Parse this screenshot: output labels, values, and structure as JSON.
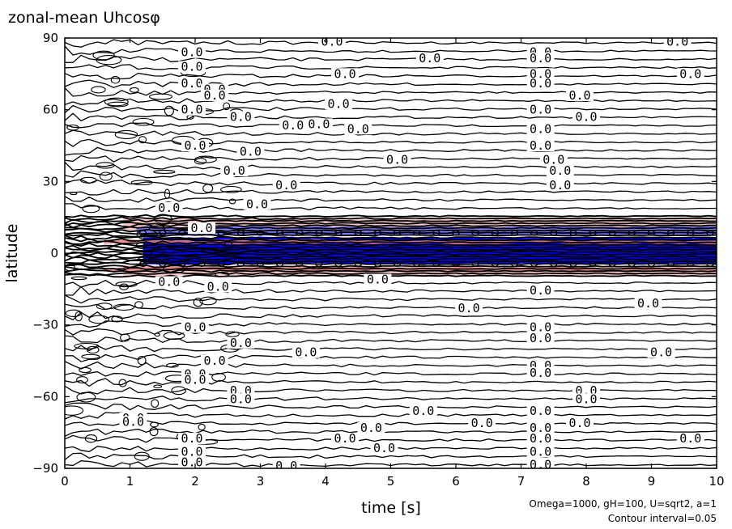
{
  "chart_data": {
    "type": "contour",
    "title": "zonal-mean Uhcosφ",
    "xlabel": "time [s]",
    "ylabel": "latitude",
    "xlim": [
      0,
      10
    ],
    "ylim": [
      -90,
      90
    ],
    "xticks": [
      "0",
      "1",
      "2",
      "3",
      "4",
      "5",
      "6",
      "7",
      "8",
      "9",
      "10"
    ],
    "yticks": [
      "90",
      "60",
      "30",
      "0",
      "−30",
      "−60",
      "−90"
    ],
    "yticks_values": [
      90,
      60,
      30,
      0,
      -30,
      -60,
      -90
    ],
    "annotations": [
      "Omega=1000, gH=100, U=sqrt2, a=1",
      "Contour interval=0.05"
    ],
    "contour_label": "0.0",
    "contour_interval": 0.05,
    "colors": {
      "negative_fill": "#0000ff",
      "weak_negative_fill": "#8080ff",
      "positive_fill": "#e88080",
      "weak_positive_fill": "#f4c0c0",
      "contour_line": "#000000"
    },
    "contour_labels": [
      {
        "t": 4.1,
        "lat": 88.5
      },
      {
        "t": 9.4,
        "lat": 88.5
      },
      {
        "t": 7.3,
        "lat": 84
      },
      {
        "t": 1.95,
        "lat": 84
      },
      {
        "t": 5.6,
        "lat": 81.5
      },
      {
        "t": 7.3,
        "lat": 81.5
      },
      {
        "t": 1.95,
        "lat": 78
      },
      {
        "t": 4.3,
        "lat": 75
      },
      {
        "t": 7.3,
        "lat": 75
      },
      {
        "t": 9.6,
        "lat": 75
      },
      {
        "t": 1.95,
        "lat": 71
      },
      {
        "t": 2.3,
        "lat": 68.5
      },
      {
        "t": 7.3,
        "lat": 71
      },
      {
        "t": 2.3,
        "lat": 66
      },
      {
        "t": 7.9,
        "lat": 66
      },
      {
        "t": 4.2,
        "lat": 62.5
      },
      {
        "t": 1.95,
        "lat": 60
      },
      {
        "t": 7.3,
        "lat": 60
      },
      {
        "t": 2.7,
        "lat": 57
      },
      {
        "t": 8.0,
        "lat": 57
      },
      {
        "t": 3.5,
        "lat": 53.5
      },
      {
        "t": 3.9,
        "lat": 54
      },
      {
        "t": 4.5,
        "lat": 52
      },
      {
        "t": 7.3,
        "lat": 52
      },
      {
        "t": 2.0,
        "lat": 45
      },
      {
        "t": 7.3,
        "lat": 45
      },
      {
        "t": 2.85,
        "lat": 42.5
      },
      {
        "t": 5.1,
        "lat": 39
      },
      {
        "t": 7.5,
        "lat": 39
      },
      {
        "t": 2.6,
        "lat": 34.5
      },
      {
        "t": 7.6,
        "lat": 34.5
      },
      {
        "t": 3.4,
        "lat": 28.5
      },
      {
        "t": 7.6,
        "lat": 28.5
      },
      {
        "t": 2.95,
        "lat": 20.5
      },
      {
        "t": 1.6,
        "lat": 19
      },
      {
        "t": 2.1,
        "lat": 10.5
      },
      {
        "t": 1.6,
        "lat": -12
      },
      {
        "t": 2.35,
        "lat": -14
      },
      {
        "t": 4.8,
        "lat": -11
      },
      {
        "t": 7.3,
        "lat": -15.5
      },
      {
        "t": 6.2,
        "lat": -23
      },
      {
        "t": 8.95,
        "lat": -21
      },
      {
        "t": 2.0,
        "lat": -31
      },
      {
        "t": 2.7,
        "lat": -37.5
      },
      {
        "t": 7.3,
        "lat": -31
      },
      {
        "t": 7.3,
        "lat": -35.5
      },
      {
        "t": 3.7,
        "lat": -41.5
      },
      {
        "t": 9.15,
        "lat": -41.5
      },
      {
        "t": 2.3,
        "lat": -45
      },
      {
        "t": 7.3,
        "lat": -47
      },
      {
        "t": 2.0,
        "lat": -50.5
      },
      {
        "t": 7.3,
        "lat": -50
      },
      {
        "t": 2.0,
        "lat": -53
      },
      {
        "t": 2.7,
        "lat": -57.5
      },
      {
        "t": 8.0,
        "lat": -57.5
      },
      {
        "t": 2.7,
        "lat": -61
      },
      {
        "t": 8.0,
        "lat": -61
      },
      {
        "t": 5.5,
        "lat": -66
      },
      {
        "t": 7.3,
        "lat": -66
      },
      {
        "t": 1.05,
        "lat": -69
      },
      {
        "t": 1.05,
        "lat": -70.5
      },
      {
        "t": 4.7,
        "lat": -73
      },
      {
        "t": 6.4,
        "lat": -71
      },
      {
        "t": 7.3,
        "lat": -73
      },
      {
        "t": 7.9,
        "lat": -71
      },
      {
        "t": 4.3,
        "lat": -77.5
      },
      {
        "t": 1.95,
        "lat": -77.5
      },
      {
        "t": 7.3,
        "lat": -77.5
      },
      {
        "t": 9.6,
        "lat": -77.5
      },
      {
        "t": 1.95,
        "lat": -83
      },
      {
        "t": 7.3,
        "lat": -83
      },
      {
        "t": 4.9,
        "lat": -81.5
      },
      {
        "t": 1.95,
        "lat": -87.5
      },
      {
        "t": 7.3,
        "lat": -88.5
      },
      {
        "t": 3.4,
        "lat": -89
      }
    ]
  }
}
